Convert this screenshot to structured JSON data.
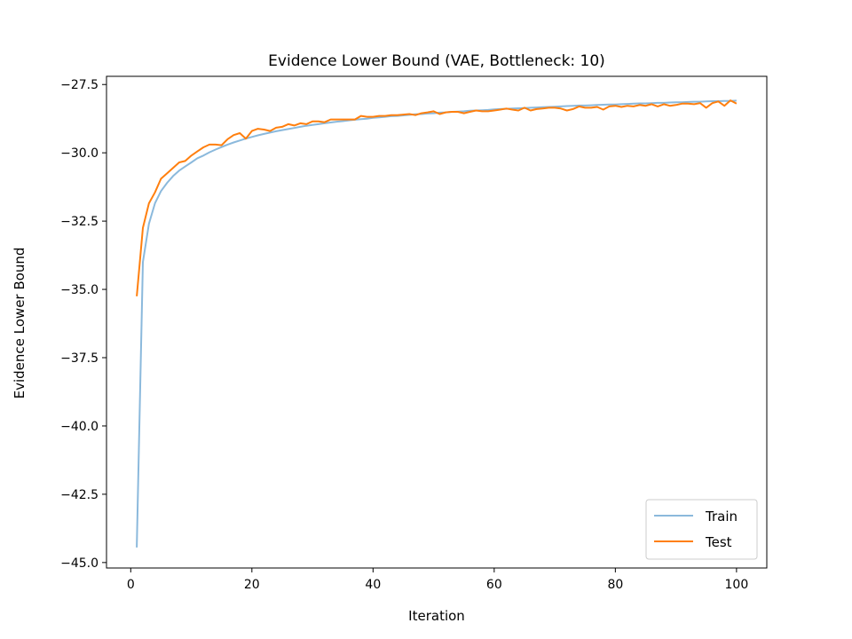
{
  "chart_data": {
    "type": "line",
    "title": "Evidence Lower Bound (VAE, Bottleneck: 10)",
    "xlabel": "Iteration",
    "ylabel": "Evidence Lower Bound",
    "xlim": [
      -4,
      105
    ],
    "ylim": [
      -45.2,
      -27.2
    ],
    "xticks": [
      0,
      20,
      40,
      60,
      80,
      100
    ],
    "yticks": [
      -45.0,
      -42.5,
      -40.0,
      -37.5,
      -35.0,
      -32.5,
      -30.0,
      -27.5
    ],
    "xtick_labels": [
      "0",
      "20",
      "40",
      "60",
      "80",
      "100"
    ],
    "ytick_labels": [
      "−45.0",
      "−42.5",
      "−40.0",
      "−37.5",
      "−35.0",
      "−32.5",
      "−30.0",
      "−27.5"
    ],
    "grid": false,
    "legend_position": "lower-right",
    "x": [
      1,
      2,
      3,
      4,
      5,
      6,
      7,
      8,
      9,
      10,
      11,
      12,
      13,
      14,
      15,
      16,
      17,
      18,
      19,
      20,
      21,
      22,
      23,
      24,
      25,
      26,
      27,
      28,
      29,
      30,
      31,
      32,
      33,
      34,
      35,
      36,
      37,
      38,
      39,
      40,
      41,
      42,
      43,
      44,
      45,
      46,
      47,
      48,
      49,
      50,
      51,
      52,
      53,
      54,
      55,
      56,
      57,
      58,
      59,
      60,
      61,
      62,
      63,
      64,
      65,
      66,
      67,
      68,
      69,
      70,
      71,
      72,
      73,
      74,
      75,
      76,
      77,
      78,
      79,
      80,
      81,
      82,
      83,
      84,
      85,
      86,
      87,
      88,
      89,
      90,
      91,
      92,
      93,
      94,
      95,
      96,
      97,
      98,
      99,
      100
    ],
    "series": [
      {
        "name": "Train",
        "color": "#8bb9dc",
        "values": [
          -44.45,
          -34.0,
          -32.6,
          -31.85,
          -31.4,
          -31.1,
          -30.85,
          -30.65,
          -30.5,
          -30.35,
          -30.2,
          -30.1,
          -29.98,
          -29.88,
          -29.79,
          -29.7,
          -29.62,
          -29.55,
          -29.48,
          -29.42,
          -29.36,
          -29.31,
          -29.26,
          -29.21,
          -29.17,
          -29.13,
          -29.09,
          -29.05,
          -29.01,
          -28.98,
          -28.95,
          -28.92,
          -28.89,
          -28.86,
          -28.84,
          -28.81,
          -28.79,
          -28.77,
          -28.75,
          -28.72,
          -28.7,
          -28.68,
          -28.66,
          -28.65,
          -28.63,
          -28.61,
          -28.59,
          -28.58,
          -28.56,
          -28.55,
          -28.53,
          -28.52,
          -28.5,
          -28.49,
          -28.48,
          -28.46,
          -28.45,
          -28.44,
          -28.43,
          -28.41,
          -28.4,
          -28.39,
          -28.38,
          -28.37,
          -28.36,
          -28.35,
          -28.34,
          -28.33,
          -28.32,
          -28.31,
          -28.3,
          -28.29,
          -28.28,
          -28.27,
          -28.27,
          -28.26,
          -28.25,
          -28.24,
          -28.23,
          -28.23,
          -28.22,
          -28.21,
          -28.2,
          -28.19,
          -28.19,
          -28.18,
          -28.17,
          -28.17,
          -28.16,
          -28.15,
          -28.15,
          -28.14,
          -28.13,
          -28.13,
          -28.12,
          -28.11,
          -28.11,
          -28.1,
          -28.1,
          -28.09
        ]
      },
      {
        "name": "Test",
        "color": "#ff7f0e",
        "values": [
          -35.25,
          -32.75,
          -31.85,
          -31.45,
          -30.95,
          -30.75,
          -30.55,
          -30.35,
          -30.3,
          -30.1,
          -29.95,
          -29.8,
          -29.7,
          -29.7,
          -29.72,
          -29.5,
          -29.35,
          -29.28,
          -29.48,
          -29.2,
          -29.12,
          -29.15,
          -29.2,
          -29.08,
          -29.05,
          -28.95,
          -29.0,
          -28.92,
          -28.95,
          -28.85,
          -28.85,
          -28.88,
          -28.78,
          -28.78,
          -28.78,
          -28.78,
          -28.78,
          -28.65,
          -28.68,
          -28.68,
          -28.65,
          -28.65,
          -28.62,
          -28.62,
          -28.6,
          -28.58,
          -28.62,
          -28.55,
          -28.52,
          -28.48,
          -28.58,
          -28.52,
          -28.5,
          -28.5,
          -28.55,
          -28.5,
          -28.45,
          -28.48,
          -28.48,
          -28.45,
          -28.42,
          -28.38,
          -28.42,
          -28.45,
          -28.35,
          -28.45,
          -28.4,
          -28.38,
          -28.35,
          -28.35,
          -28.38,
          -28.45,
          -28.4,
          -28.3,
          -28.35,
          -28.35,
          -28.32,
          -28.42,
          -28.3,
          -28.28,
          -28.32,
          -28.28,
          -28.3,
          -28.25,
          -28.28,
          -28.22,
          -28.3,
          -28.22,
          -28.28,
          -28.25,
          -28.2,
          -28.2,
          -28.22,
          -28.18,
          -28.35,
          -28.18,
          -28.12,
          -28.28,
          -28.08,
          -28.2
        ]
      }
    ]
  }
}
